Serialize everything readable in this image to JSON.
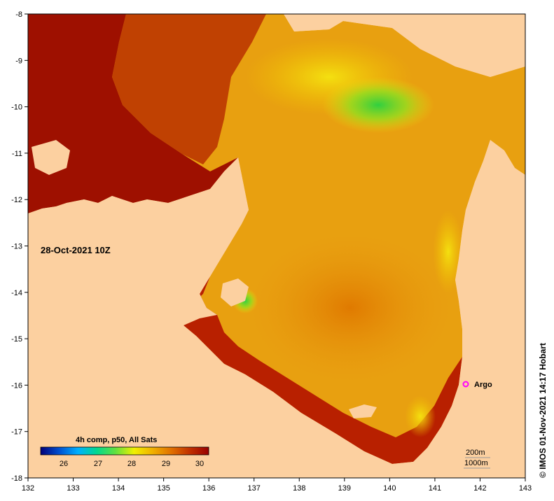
{
  "map": {
    "x_ticks": [
      "132",
      "133",
      "134",
      "135",
      "136",
      "137",
      "138",
      "139",
      "140",
      "141",
      "142",
      "143"
    ],
    "y_ticks": [
      "-8",
      "-9",
      "-10",
      "-11",
      "-12",
      "-13",
      "-14",
      "-15",
      "-16",
      "-17",
      "-18"
    ],
    "date_label": "28-Oct-2021 10Z",
    "marker_label": "Argo",
    "marker_color": "#ff00ff",
    "land_color": "#fcd0a0",
    "credit": "© IMOS 01-Nov-2021 14:17 Hobart",
    "scale": {
      "title": "4h comp, p50, All Sats",
      "ticks": [
        "26",
        "27",
        "28",
        "29",
        "30"
      ],
      "colors": [
        "#00007a",
        "#0050d0",
        "#00b0ff",
        "#00d890",
        "#60e040",
        "#f0f000",
        "#f0b000",
        "#e07000",
        "#c03000",
        "#990000"
      ]
    },
    "contours": [
      "200m",
      "1000m"
    ]
  }
}
